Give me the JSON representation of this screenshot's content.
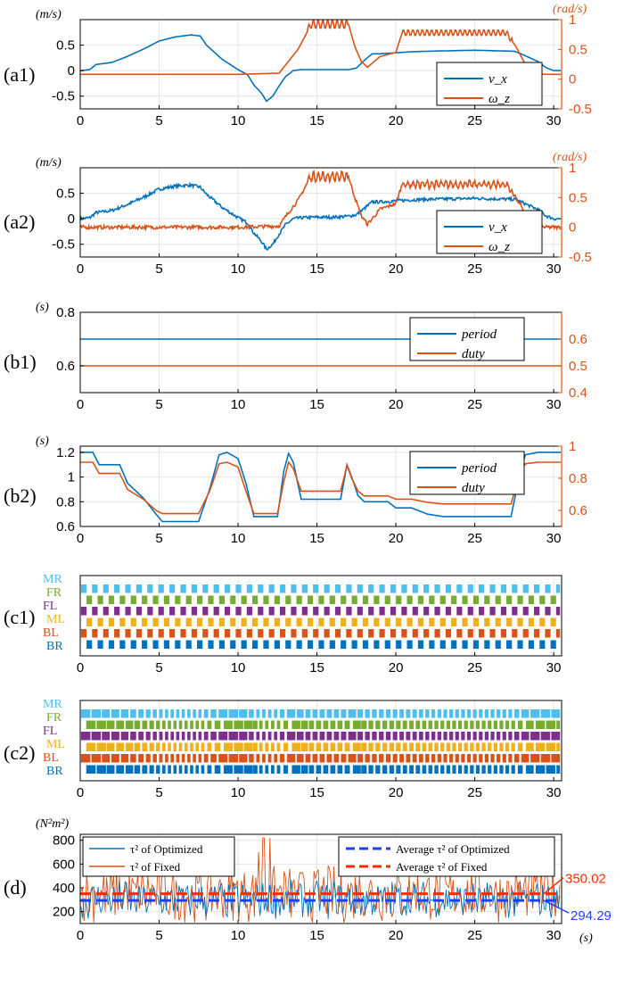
{
  "colors": {
    "blue": "#0072bd",
    "orange": "#d95319",
    "legend_blue": "#1f3fff",
    "legend_red": "#ff2a00",
    "gait": {
      "MR": "#4dbeee",
      "FR": "#77ac30",
      "FL": "#7e2f8e",
      "ML": "#edb120",
      "BL": "#d95319",
      "BR": "#0072bd"
    }
  },
  "chart_data": [
    {
      "panel": "(a1)",
      "type": "line",
      "left_unit": "(m/s)",
      "right_unit": "(rad/s)",
      "xlim": [
        0,
        30.5
      ],
      "xticks": [
        0,
        5,
        10,
        15,
        20,
        25,
        30
      ],
      "ylim_left": [
        -0.75,
        1.0
      ],
      "yticks_left": [
        -0.5,
        0,
        0.5
      ],
      "ylim_right": [
        -0.5,
        1.0
      ],
      "yticks_right": [
        -0.5,
        0,
        0.5,
        1
      ],
      "legend": [
        "v_x",
        "ω_z"
      ],
      "series": [
        {
          "name": "v_x",
          "axis": "left",
          "x": [
            0,
            0.6,
            1,
            2,
            3,
            4,
            5,
            6,
            7,
            7.6,
            8,
            9,
            10,
            10.6,
            11,
            11.5,
            11.8,
            12.2,
            12.6,
            13,
            13.5,
            14,
            15,
            16,
            17,
            17.5,
            18,
            18.5,
            19,
            20,
            21,
            22,
            25,
            27.5,
            28,
            28.5,
            29,
            29.5,
            30,
            30.5
          ],
          "y": [
            0,
            0.02,
            0.12,
            0.16,
            0.28,
            0.42,
            0.58,
            0.66,
            0.7,
            0.68,
            0.5,
            0.22,
            0.02,
            -0.08,
            -0.28,
            -0.45,
            -0.6,
            -0.5,
            -0.3,
            -0.12,
            0.0,
            0.02,
            0.02,
            0.02,
            0.02,
            0.05,
            0.2,
            0.33,
            0.33,
            0.35,
            0.37,
            0.38,
            0.4,
            0.38,
            0.32,
            0.25,
            0.18,
            0.06,
            0.0,
            0.0
          ]
        },
        {
          "name": "ω_z",
          "axis": "right",
          "x": [
            0,
            5,
            10,
            12.6,
            13.2,
            13.8,
            14.3,
            14.6,
            17,
            17.4,
            17.8,
            18.2,
            19,
            20,
            20.4,
            27,
            27.6,
            28.2,
            28.8,
            29.4,
            30.5
          ],
          "y": [
            0.08,
            0.08,
            0.08,
            0.1,
            0.3,
            0.5,
            0.75,
            0.92,
            0.92,
            0.55,
            0.3,
            0.2,
            0.38,
            0.45,
            0.78,
            0.78,
            0.55,
            0.25,
            0.12,
            0.08,
            0.08
          ],
          "ripple": [
            [
              14.4,
              17.0,
              0.07,
              0.3
            ],
            [
              20.4,
              27.4,
              0.05,
              0.3
            ]
          ]
        }
      ]
    },
    {
      "panel": "(a2)",
      "type": "line",
      "left_unit": "(m/s)",
      "right_unit": "(rad/s)",
      "xlim": [
        0,
        30.5
      ],
      "xticks": [
        0,
        5,
        10,
        15,
        20,
        25,
        30
      ],
      "ylim_left": [
        -0.75,
        1.0
      ],
      "yticks_left": [
        -0.5,
        0,
        0.5
      ],
      "ylim_right": [
        -0.5,
        1.0
      ],
      "yticks_right": [
        -0.5,
        0,
        0.5,
        1
      ],
      "legend": [
        "v_x",
        "ω_z"
      ],
      "series": [
        {
          "name": "v_x",
          "axis": "left",
          "x": [
            0,
            0.6,
            1,
            2,
            3,
            4,
            5,
            6,
            7,
            7.6,
            8,
            9,
            10,
            10.6,
            11,
            11.5,
            11.8,
            12.2,
            12.6,
            13,
            13.5,
            14,
            15,
            16,
            17,
            17.5,
            18,
            18.5,
            19,
            20,
            21,
            22,
            25,
            27.5,
            28,
            28.5,
            29,
            29.5,
            30,
            30.5
          ],
          "y": [
            0,
            0.02,
            0.12,
            0.16,
            0.28,
            0.42,
            0.58,
            0.64,
            0.66,
            0.62,
            0.48,
            0.22,
            0.02,
            -0.08,
            -0.28,
            -0.45,
            -0.6,
            -0.5,
            -0.3,
            -0.12,
            0.0,
            0.02,
            0.03,
            0.03,
            0.05,
            0.08,
            0.2,
            0.33,
            0.33,
            0.35,
            0.37,
            0.38,
            0.4,
            0.38,
            0.32,
            0.25,
            0.18,
            0.06,
            0.0,
            0.0
          ],
          "noise": 0.03
        },
        {
          "name": "ω_z",
          "axis": "right",
          "x": [
            0,
            5,
            10,
            12.6,
            13.2,
            13.8,
            14.3,
            14.6,
            17,
            17.4,
            17.8,
            18.2,
            19,
            20,
            20.4,
            27,
            27.6,
            28.2,
            28.8,
            29.4,
            30.5
          ],
          "y": [
            0.0,
            0.0,
            0.0,
            0.02,
            0.25,
            0.45,
            0.7,
            0.85,
            0.85,
            0.5,
            0.2,
            0.05,
            0.3,
            0.4,
            0.72,
            0.72,
            0.5,
            0.25,
            0.05,
            0.0,
            0.0
          ],
          "ripple": [
            [
              14.4,
              17.0,
              0.07,
              0.3
            ],
            [
              20.4,
              27.4,
              0.05,
              0.3
            ]
          ],
          "noise": 0.03
        }
      ]
    },
    {
      "panel": "(b1)",
      "type": "line",
      "left_unit": "(s)",
      "xlim": [
        0,
        30.5
      ],
      "xticks": [
        0,
        5,
        10,
        15,
        20,
        25,
        30
      ],
      "ylim_left": [
        0.5,
        0.8
      ],
      "yticks_left": [
        0.6,
        0.8
      ],
      "ylim_right": [
        0.4,
        0.7
      ],
      "yticks_right": [
        0.4,
        0.5,
        0.6
      ],
      "legend": [
        "period",
        "duty"
      ],
      "series": [
        {
          "name": "period",
          "axis": "left",
          "x": [
            0,
            30.5
          ],
          "y": [
            0.7,
            0.7
          ]
        },
        {
          "name": "duty",
          "axis": "right",
          "x": [
            0,
            30.5
          ],
          "y": [
            0.5,
            0.5
          ]
        }
      ]
    },
    {
      "panel": "(b2)",
      "type": "line",
      "left_unit": "(s)",
      "xlim": [
        0,
        30.5
      ],
      "xticks": [
        0,
        5,
        10,
        15,
        20,
        25,
        30
      ],
      "ylim_left": [
        0.6,
        1.25
      ],
      "yticks_left": [
        0.6,
        0.8,
        1,
        1.2
      ],
      "ylim_right": [
        0.5,
        1.0
      ],
      "yticks_right": [
        0.6,
        0.8,
        1
      ],
      "legend": [
        "period",
        "duty"
      ],
      "series": [
        {
          "name": "period",
          "axis": "left",
          "x": [
            0,
            0.8,
            1.2,
            2.5,
            3.0,
            4.0,
            4.8,
            5.2,
            7.5,
            8.2,
            8.8,
            9.3,
            10.0,
            10.5,
            11.0,
            12.5,
            12.9,
            13.2,
            13.5,
            14.0,
            16.5,
            16.9,
            17.2,
            17.6,
            18.0,
            19.5,
            20.0,
            21.0,
            22.0,
            23.0,
            27.3,
            27.8,
            28.2,
            29.0,
            30.5
          ],
          "y": [
            1.2,
            1.2,
            1.1,
            1.1,
            0.95,
            0.83,
            0.7,
            0.64,
            0.64,
            0.9,
            1.18,
            1.2,
            1.15,
            0.95,
            0.68,
            0.68,
            1.05,
            1.19,
            1.12,
            0.82,
            0.82,
            1.1,
            1.0,
            0.85,
            0.8,
            0.8,
            0.75,
            0.75,
            0.7,
            0.68,
            0.68,
            1.0,
            1.18,
            1.2,
            1.2
          ]
        },
        {
          "name": "duty",
          "axis": "right",
          "x": [
            0,
            0.8,
            1.2,
            2.5,
            3.0,
            4.0,
            4.8,
            5.2,
            7.5,
            8.2,
            8.8,
            9.3,
            10.0,
            10.5,
            11.0,
            12.5,
            12.9,
            13.2,
            13.5,
            14.0,
            16.5,
            16.9,
            17.2,
            17.6,
            18.0,
            19.5,
            20.0,
            21.0,
            22.0,
            23.0,
            27.3,
            27.8,
            28.2,
            29.0,
            30.5
          ],
          "y": [
            0.9,
            0.9,
            0.83,
            0.83,
            0.73,
            0.67,
            0.6,
            0.58,
            0.58,
            0.72,
            0.89,
            0.9,
            0.87,
            0.72,
            0.58,
            0.58,
            0.78,
            0.9,
            0.86,
            0.72,
            0.72,
            0.88,
            0.8,
            0.72,
            0.69,
            0.69,
            0.67,
            0.67,
            0.65,
            0.64,
            0.64,
            0.82,
            0.89,
            0.9,
            0.9
          ]
        }
      ]
    },
    {
      "panel": "(c1)",
      "type": "gait",
      "xlim": [
        0,
        30.5
      ],
      "xticks": [
        0,
        5,
        10,
        15,
        20,
        25,
        30
      ],
      "legs": [
        "MR",
        "FR",
        "FL",
        "ML",
        "BL",
        "BR"
      ],
      "period": 0.7,
      "duty": 0.5
    },
    {
      "panel": "(c2)",
      "type": "gait",
      "xlim": [
        0,
        30.5
      ],
      "xticks": [
        0,
        5,
        10,
        15,
        20,
        25,
        30
      ],
      "legs": [
        "MR",
        "FR",
        "FL",
        "ML",
        "BL",
        "BR"
      ],
      "period_profile": "b2"
    },
    {
      "panel": "(d)",
      "type": "line",
      "left_unit": "(N²m²)",
      "x_unit": "(s)",
      "xlim": [
        0,
        30.5
      ],
      "xticks": [
        0,
        5,
        10,
        15,
        20,
        25,
        30
      ],
      "ylim_left": [
        100,
        850
      ],
      "yticks_left": [
        200,
        400,
        600,
        800
      ],
      "legend_left": [
        "τ² of Optimized",
        "τ² of Fixed"
      ],
      "legend_right": [
        "Average τ² of Optimized",
        "Average τ² of Fixed"
      ],
      "avg_optimized": 294.29,
      "avg_fixed": 350.02,
      "annotation_fixed": "350.02",
      "annotation_optimized": "294.29",
      "series": [
        {
          "name": "τ² of Optimized",
          "center": 300,
          "amp": 170
        },
        {
          "name": "τ² of Fixed",
          "center": 350,
          "amp": 250,
          "peaks": [
            [
              11.6,
              820
            ],
            [
              12.0,
              820
            ],
            [
              11.3,
              700
            ]
          ]
        }
      ]
    }
  ]
}
